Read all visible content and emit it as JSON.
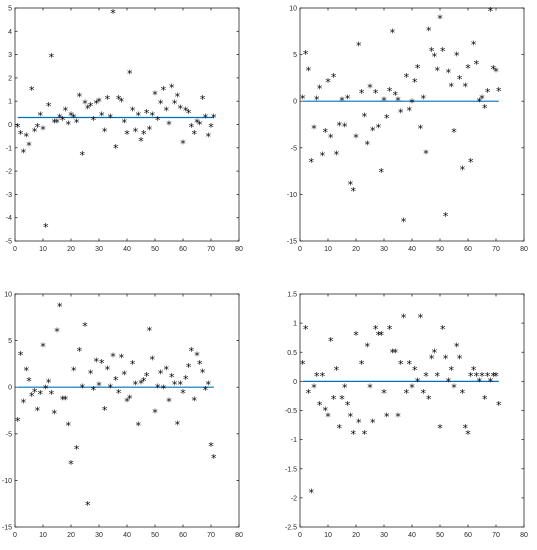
{
  "figure": {
    "line_color": "#0072BD",
    "marker_color": "#000000",
    "marker_glyph": "*"
  },
  "chart_data": [
    {
      "type": "scatter",
      "xlim": [
        0,
        80
      ],
      "ylim": [
        -5,
        5
      ],
      "xticks": [
        "0",
        "10",
        "20",
        "30",
        "40",
        "50",
        "60",
        "70",
        "80"
      ],
      "yticks": [
        "-5",
        "-4",
        "-3",
        "-2",
        "-1",
        "0",
        "1",
        "2",
        "3",
        "4",
        "5"
      ],
      "grid": false,
      "hline": 0.3,
      "x": [
        1,
        2,
        3,
        4,
        5,
        6,
        7,
        8,
        9,
        10,
        11,
        12,
        13,
        14,
        15,
        16,
        17,
        18,
        19,
        20,
        21,
        22,
        23,
        24,
        25,
        26,
        27,
        28,
        29,
        30,
        31,
        32,
        33,
        34,
        35,
        36,
        37,
        38,
        39,
        40,
        41,
        42,
        43,
        44,
        45,
        46,
        47,
        48,
        49,
        50,
        51,
        52,
        53,
        54,
        55,
        56,
        57,
        58,
        59,
        60,
        61,
        62,
        63,
        64,
        65,
        66,
        67,
        68,
        69,
        70,
        71
      ],
      "y": [
        -0.1,
        -0.4,
        -1.2,
        -0.5,
        -0.9,
        1.5,
        -0.3,
        -0.1,
        0.4,
        -0.2,
        -4.4,
        0.8,
        2.9,
        0.1,
        0.1,
        0.3,
        0.2,
        0.6,
        0.0,
        0.4,
        0.3,
        0.1,
        1.2,
        -1.3,
        0.9,
        0.7,
        0.8,
        0.2,
        0.9,
        1.0,
        0.4,
        -0.3,
        1.1,
        0.3,
        4.8,
        -1.0,
        1.1,
        1.0,
        0.1,
        -0.4,
        2.2,
        0.6,
        -0.3,
        0.4,
        -0.7,
        -0.4,
        0.5,
        -0.2,
        0.4,
        1.3,
        0.2,
        0.9,
        1.5,
        0.6,
        0.0,
        1.6,
        0.9,
        1.2,
        0.7,
        -0.8,
        0.6,
        0.5,
        -0.1,
        -0.4,
        0.1,
        0.0,
        1.1,
        0.3,
        -0.5,
        -0.1,
        0.3
      ]
    },
    {
      "type": "scatter",
      "xlim": [
        0,
        80
      ],
      "ylim": [
        -15,
        10
      ],
      "xticks": [
        "0",
        "10",
        "20",
        "30",
        "40",
        "50",
        "60",
        "70",
        "80"
      ],
      "yticks": [
        "-15",
        "-10",
        "-5",
        "0",
        "5",
        "10"
      ],
      "grid": false,
      "hline": 0.0,
      "x": [
        1,
        2,
        3,
        4,
        5,
        6,
        7,
        8,
        9,
        10,
        11,
        12,
        13,
        14,
        15,
        16,
        17,
        18,
        19,
        20,
        21,
        22,
        23,
        24,
        25,
        26,
        27,
        28,
        29,
        30,
        31,
        32,
        33,
        34,
        35,
        36,
        37,
        38,
        39,
        40,
        41,
        42,
        43,
        44,
        45,
        46,
        47,
        48,
        49,
        50,
        51,
        52,
        53,
        54,
        55,
        56,
        57,
        58,
        59,
        60,
        61,
        62,
        63,
        64,
        65,
        66,
        67,
        68,
        69,
        70,
        71
      ],
      "y": [
        0.3,
        5.1,
        3.3,
        -6.5,
        -2.9,
        0.2,
        1.4,
        -5.8,
        -3.3,
        2.1,
        -3.9,
        2.6,
        -5.7,
        -2.6,
        0.1,
        -2.7,
        0.3,
        -8.9,
        -9.6,
        -3.9,
        6.0,
        0.9,
        -1.6,
        -4.6,
        1.5,
        -3.1,
        0.9,
        -2.8,
        -7.6,
        0.1,
        -1.8,
        1.1,
        7.4,
        0.7,
        0.1,
        -1.2,
        -12.9,
        2.6,
        -1.0,
        -0.1,
        2.1,
        3.6,
        -2.9,
        0.3,
        -5.6,
        7.6,
        5.4,
        4.8,
        3.3,
        8.9,
        5.4,
        -12.3,
        3.1,
        1.6,
        -3.3,
        4.9,
        2.4,
        -7.3,
        1.6,
        3.6,
        -6.5,
        6.1,
        4.0,
        0.0,
        0.3,
        -0.7,
        1.0,
        9.7,
        3.5,
        3.2,
        1.1
      ]
    },
    {
      "type": "scatter",
      "xlim": [
        0,
        80
      ],
      "ylim": [
        -15,
        10
      ],
      "xticks": [
        "0",
        "10",
        "20",
        "30",
        "40",
        "50",
        "60",
        "70",
        "80"
      ],
      "yticks": [
        "-15",
        "-10",
        "-5",
        "0",
        "5",
        "10"
      ],
      "grid": false,
      "hline": 0.0,
      "x": [
        1,
        2,
        3,
        4,
        5,
        6,
        7,
        8,
        9,
        10,
        11,
        12,
        13,
        14,
        15,
        16,
        17,
        18,
        19,
        20,
        21,
        22,
        23,
        24,
        25,
        26,
        27,
        28,
        29,
        30,
        31,
        32,
        33,
        34,
        35,
        36,
        37,
        38,
        39,
        40,
        41,
        42,
        43,
        44,
        45,
        46,
        47,
        48,
        49,
        50,
        51,
        52,
        53,
        54,
        55,
        56,
        57,
        58,
        59,
        60,
        61,
        62,
        63,
        64,
        65,
        66,
        67,
        68,
        69,
        70,
        71
      ],
      "y": [
        -3.6,
        3.5,
        -1.6,
        1.8,
        0.7,
        -0.9,
        -0.5,
        -2.5,
        -0.7,
        4.4,
        -0.1,
        0.5,
        -0.7,
        -2.8,
        6.0,
        8.7,
        -1.3,
        -1.3,
        -4.1,
        -8.2,
        1.8,
        -6.6,
        3.9,
        0.0,
        6.6,
        -12.6,
        1.5,
        -0.3,
        2.8,
        0.2,
        2.6,
        -2.4,
        1.9,
        0.0,
        3.3,
        0.8,
        -0.6,
        3.2,
        1.4,
        -1.5,
        -1.2,
        2.5,
        0.3,
        -4.1,
        0.4,
        0.7,
        1.2,
        6.1,
        3.0,
        -2.7,
        0.0,
        1.5,
        -0.1,
        1.9,
        -1.5,
        1.1,
        0.3,
        -4.0,
        0.3,
        -0.6,
        0.9,
        2.2,
        3.9,
        -1.4,
        3.4,
        2.5,
        1.6,
        -0.3,
        0.3,
        -6.3,
        -7.6
      ]
    },
    {
      "type": "scatter",
      "xlim": [
        0,
        80
      ],
      "ylim": [
        -2.5,
        1.5
      ],
      "xticks": [
        "0",
        "10",
        "20",
        "30",
        "40",
        "50",
        "60",
        "70",
        "80"
      ],
      "yticks": [
        "-2.5",
        "-2",
        "-1.5",
        "-1",
        "-0.5",
        "0",
        "0.5",
        "1",
        "1.5"
      ],
      "grid": false,
      "hline": 0.0,
      "x": [
        1,
        2,
        3,
        4,
        5,
        6,
        7,
        8,
        9,
        10,
        11,
        12,
        13,
        14,
        15,
        16,
        17,
        18,
        19,
        20,
        21,
        22,
        23,
        24,
        25,
        26,
        27,
        28,
        29,
        30,
        31,
        32,
        33,
        34,
        35,
        36,
        37,
        38,
        39,
        40,
        41,
        42,
        43,
        44,
        45,
        46,
        47,
        48,
        49,
        50,
        51,
        52,
        53,
        54,
        55,
        56,
        57,
        58,
        59,
        60,
        61,
        62,
        63,
        64,
        65,
        66,
        67,
        68,
        69,
        70,
        71
      ],
      "y": [
        0.3,
        0.9,
        -0.2,
        -1.9,
        -0.1,
        0.1,
        -0.4,
        0.1,
        -0.5,
        -0.6,
        0.7,
        -0.3,
        0.2,
        -0.8,
        -0.3,
        -0.1,
        -0.4,
        -0.6,
        -0.9,
        0.8,
        -0.7,
        0.3,
        -0.9,
        0.6,
        -0.1,
        -0.7,
        0.9,
        0.8,
        0.8,
        -0.2,
        -0.6,
        0.9,
        0.5,
        0.5,
        -0.6,
        0.3,
        1.1,
        -0.2,
        0.3,
        -0.1,
        0.2,
        0.0,
        1.1,
        -0.2,
        0.1,
        -0.3,
        0.4,
        0.5,
        0.1,
        -0.8,
        0.9,
        0.4,
        0.0,
        0.2,
        -0.1,
        0.6,
        0.4,
        -0.2,
        -0.8,
        -0.9,
        0.1,
        0.2,
        0.1,
        0.0,
        0.1,
        -0.3,
        0.1,
        0.0,
        0.1,
        0.1,
        -0.4
      ]
    }
  ]
}
